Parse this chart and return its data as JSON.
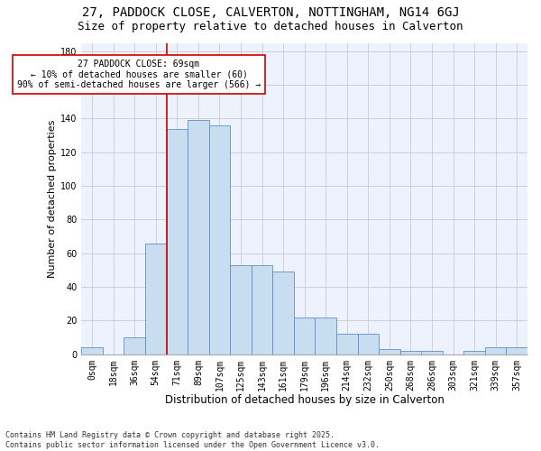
{
  "title_line1": "27, PADDOCK CLOSE, CALVERTON, NOTTINGHAM, NG14 6GJ",
  "title_line2": "Size of property relative to detached houses in Calverton",
  "xlabel": "Distribution of detached houses by size in Calverton",
  "ylabel": "Number of detached properties",
  "bar_labels": [
    "0sqm",
    "18sqm",
    "36sqm",
    "54sqm",
    "71sqm",
    "89sqm",
    "107sqm",
    "125sqm",
    "143sqm",
    "161sqm",
    "179sqm",
    "196sqm",
    "214sqm",
    "232sqm",
    "250sqm",
    "268sqm",
    "286sqm",
    "303sqm",
    "321sqm",
    "339sqm",
    "357sqm"
  ],
  "bar_values": [
    4,
    0,
    10,
    66,
    134,
    139,
    136,
    53,
    53,
    49,
    22,
    22,
    12,
    12,
    3,
    2,
    2,
    0,
    2,
    4,
    4
  ],
  "bar_color": "#c9ddf0",
  "bar_edge_color": "#5b8fc8",
  "grid_color": "#c8c8d8",
  "background_color": "#eef2fc",
  "vline_x_idx": 4,
  "vline_color": "#cc0000",
  "annotation_text": "27 PADDOCK CLOSE: 69sqm\n← 10% of detached houses are smaller (60)\n90% of semi-detached houses are larger (566) →",
  "annotation_box_color": "white",
  "annotation_box_edge": "#cc0000",
  "footer_text": "Contains HM Land Registry data © Crown copyright and database right 2025.\nContains public sector information licensed under the Open Government Licence v3.0.",
  "ylim": [
    0,
    185
  ],
  "yticks": [
    0,
    20,
    40,
    60,
    80,
    100,
    120,
    140,
    160,
    180
  ],
  "title1_fontsize": 10,
  "title2_fontsize": 9,
  "xlabel_fontsize": 8.5,
  "ylabel_fontsize": 8,
  "tick_fontsize": 7,
  "annotation_fontsize": 7,
  "footer_fontsize": 6
}
